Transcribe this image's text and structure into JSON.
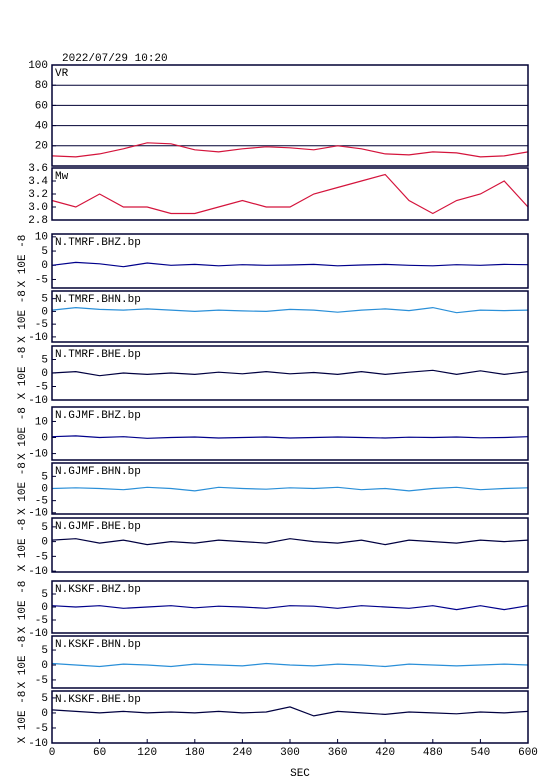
{
  "chart_data": [
    {
      "type": "line",
      "title": "2022/07/29 10:20",
      "ylim": [
        0,
        100
      ],
      "yticks": [
        20,
        40,
        60,
        80,
        100
      ],
      "grid": true,
      "xlim": [
        0,
        600
      ],
      "x": [
        0,
        30,
        60,
        90,
        120,
        150,
        180,
        210,
        240,
        270,
        300,
        330,
        360,
        390,
        420,
        450,
        480,
        510,
        540,
        570,
        600
      ],
      "series": [
        {
          "name": "VR",
          "color": "#d4143c",
          "values": [
            10,
            9,
            12,
            17,
            23,
            22,
            16,
            14,
            17,
            19,
            18,
            16,
            20,
            17,
            12,
            11,
            14,
            13,
            9,
            10,
            14
          ]
        }
      ]
    },
    {
      "type": "line",
      "ylim": [
        2.8,
        3.6
      ],
      "yticks": [
        2.8,
        {
          "value": 3,
          "label": "3.0"
        },
        3.2,
        3.4,
        3.6
      ],
      "grid": false,
      "xlim": [
        0,
        600
      ],
      "x": [
        0,
        30,
        60,
        90,
        120,
        150,
        180,
        210,
        240,
        270,
        300,
        330,
        360,
        390,
        420,
        450,
        480,
        510,
        540,
        570,
        600
      ],
      "series": [
        {
          "name": "Mw",
          "color": "#d4143c",
          "values": [
            3.1,
            3.0,
            3.2,
            3.0,
            3.0,
            2.9,
            2.9,
            3.0,
            3.1,
            3.0,
            3.0,
            3.2,
            3.3,
            3.4,
            3.5,
            3.1,
            2.9,
            3.1,
            3.2,
            3.4,
            3.0
          ]
        }
      ]
    },
    {
      "type": "line",
      "ylabel": "X 10E -8",
      "ylim": [
        -8,
        11
      ],
      "yticks": [
        -5,
        0,
        5,
        10
      ],
      "grid": false,
      "xlim": [
        0,
        600
      ],
      "x": [
        0,
        30,
        60,
        90,
        120,
        150,
        180,
        210,
        240,
        270,
        300,
        330,
        360,
        390,
        420,
        450,
        480,
        510,
        540,
        570,
        600
      ],
      "series": [
        {
          "name": "N.TMRF.BHZ.bp",
          "color": "#00008b",
          "values": [
            0,
            1,
            0.5,
            -0.5,
            0.8,
            0,
            0.3,
            -0.2,
            0.2,
            0,
            0.1,
            0.3,
            -0.2,
            0.1,
            0.3,
            0,
            -0.2,
            0.2,
            0,
            0.3,
            0.2
          ]
        }
      ]
    },
    {
      "type": "line",
      "ylabel": "X 10E -8",
      "ylim": [
        -12,
        8
      ],
      "yticks": [
        -10,
        -5,
        0,
        5
      ],
      "grid": false,
      "xlim": [
        0,
        600
      ],
      "x": [
        0,
        30,
        60,
        90,
        120,
        150,
        180,
        210,
        240,
        270,
        300,
        330,
        360,
        390,
        420,
        450,
        480,
        510,
        540,
        570,
        600
      ],
      "series": [
        {
          "name": "N.TMRF.BHN.bp",
          "color": "#2a8fd8",
          "values": [
            0.5,
            1.5,
            0.8,
            0.5,
            1,
            0.5,
            0,
            0.5,
            0.2,
            0,
            0.8,
            0.5,
            -0.3,
            0.5,
            1,
            0.3,
            1.5,
            -0.5,
            0.5,
            0.3,
            0.5
          ]
        }
      ]
    },
    {
      "type": "line",
      "ylabel": "X 10E -8",
      "ylim": [
        -10,
        10
      ],
      "yticks": [
        -10,
        -5,
        0,
        5
      ],
      "grid": false,
      "xlim": [
        0,
        600
      ],
      "x": [
        0,
        30,
        60,
        90,
        120,
        150,
        180,
        210,
        240,
        270,
        300,
        330,
        360,
        390,
        420,
        450,
        480,
        510,
        540,
        570,
        600
      ],
      "series": [
        {
          "name": "N.TMRF.BHE.bp",
          "color": "#000040",
          "values": [
            0,
            0.5,
            -1,
            0,
            -0.5,
            0,
            -0.5,
            0.3,
            -0.3,
            0.5,
            -0.3,
            0.2,
            -0.5,
            0.5,
            -0.5,
            0.3,
            1,
            -0.5,
            0.8,
            -0.5,
            0.5
          ]
        }
      ]
    },
    {
      "type": "line",
      "ylabel": "X 10E -8",
      "ylim": [
        -14,
        19
      ],
      "yticks": [
        -10,
        0,
        10
      ],
      "grid": false,
      "xlim": [
        0,
        600
      ],
      "x": [
        0,
        30,
        60,
        90,
        120,
        150,
        180,
        210,
        240,
        270,
        300,
        330,
        360,
        390,
        420,
        450,
        480,
        510,
        540,
        570,
        600
      ],
      "series": [
        {
          "name": "N.GJMF.BHZ.bp",
          "color": "#00008b",
          "values": [
            0.5,
            1,
            0,
            0.5,
            -0.5,
            0,
            0.3,
            -0.3,
            0,
            0.3,
            -0.3,
            0,
            0.3,
            0,
            -0.3,
            0.2,
            0,
            0.3,
            -0.2,
            0,
            0.5
          ]
        }
      ]
    },
    {
      "type": "line",
      "ylabel": "X 10E -8",
      "ylim": [
        -10.5,
        10.5
      ],
      "yticks": [
        -10,
        -5,
        0,
        5
      ],
      "grid": false,
      "xlim": [
        0,
        600
      ],
      "x": [
        0,
        30,
        60,
        90,
        120,
        150,
        180,
        210,
        240,
        270,
        300,
        330,
        360,
        390,
        420,
        450,
        480,
        510,
        540,
        570,
        600
      ],
      "series": [
        {
          "name": "N.GJMF.BHN.bp",
          "color": "#2a8fd8",
          "values": [
            0,
            0.3,
            0,
            -0.5,
            0.5,
            0,
            -1,
            0.5,
            0,
            -0.3,
            0.3,
            0,
            0.5,
            -0.5,
            0,
            -1,
            0,
            0.5,
            -0.5,
            0,
            0.3
          ]
        }
      ]
    },
    {
      "type": "line",
      "ylabel": "X 10E -8",
      "ylim": [
        -10.3,
        8
      ],
      "yticks": [
        -10,
        -5,
        0,
        5
      ],
      "grid": false,
      "xlim": [
        0,
        600
      ],
      "x": [
        0,
        30,
        60,
        90,
        120,
        150,
        180,
        210,
        240,
        270,
        300,
        330,
        360,
        390,
        420,
        450,
        480,
        510,
        540,
        570,
        600
      ],
      "series": [
        {
          "name": "N.GJMF.BHE.bp",
          "color": "#000040",
          "values": [
            0.5,
            1,
            -0.5,
            0.5,
            -1,
            0,
            -0.5,
            0.5,
            0,
            -0.5,
            1,
            0,
            -0.5,
            0.5,
            -1,
            0.5,
            0,
            -0.5,
            0.5,
            0,
            0.5
          ]
        }
      ]
    },
    {
      "type": "line",
      "ylabel": "X 10E -8",
      "ylim": [
        -10,
        10
      ],
      "yticks": [
        -10,
        -5,
        0,
        5
      ],
      "grid": false,
      "xlim": [
        0,
        600
      ],
      "x": [
        0,
        30,
        60,
        90,
        120,
        150,
        180,
        210,
        240,
        270,
        300,
        330,
        360,
        390,
        420,
        450,
        480,
        510,
        540,
        570,
        600
      ],
      "series": [
        {
          "name": "N.KSKF.BHZ.bp",
          "color": "#00008b",
          "values": [
            0.5,
            0,
            0.5,
            -0.5,
            0,
            0.5,
            -0.3,
            0.3,
            0,
            -0.5,
            0.5,
            0.3,
            -0.5,
            0.5,
            0,
            -0.5,
            0.5,
            -1,
            0.5,
            -1,
            0.5
          ]
        }
      ]
    },
    {
      "type": "line",
      "ylabel": "X 10E -8",
      "ylim": [
        -7.7,
        9.7
      ],
      "yticks": [
        -5,
        0,
        5
      ],
      "grid": false,
      "xlim": [
        0,
        600
      ],
      "x": [
        0,
        30,
        60,
        90,
        120,
        150,
        180,
        210,
        240,
        270,
        300,
        330,
        360,
        390,
        420,
        450,
        480,
        510,
        540,
        570,
        600
      ],
      "series": [
        {
          "name": "N.KSKF.BHN.bp",
          "color": "#2a8fd8",
          "values": [
            0.5,
            0,
            -0.5,
            0.3,
            0,
            -0.5,
            0.3,
            0,
            -0.3,
            0.5,
            0,
            -0.3,
            0.3,
            0,
            -0.5,
            0.3,
            0,
            -0.3,
            0,
            0.3,
            0
          ]
        }
      ]
    },
    {
      "type": "line",
      "ylabel": "X 10E -8",
      "ylim": [
        -10,
        7.3
      ],
      "yticks": [
        -10,
        -5,
        0,
        5
      ],
      "grid": false,
      "xlim": [
        0,
        600
      ],
      "xticks": [
        0,
        60,
        120,
        180,
        240,
        300,
        360,
        420,
        480,
        540,
        600
      ],
      "xlabel": "SEC",
      "x": [
        0,
        30,
        60,
        90,
        120,
        150,
        180,
        210,
        240,
        270,
        300,
        330,
        360,
        390,
        420,
        450,
        480,
        510,
        540,
        570,
        600
      ],
      "series": [
        {
          "name": "N.KSKF.BHE.bp",
          "color": "#000040",
          "values": [
            1,
            0.5,
            0,
            0.5,
            0,
            0.3,
            0,
            0.5,
            0,
            0.3,
            2,
            -1,
            0.5,
            0,
            -0.5,
            0.3,
            0,
            -0.3,
            0.3,
            0,
            0.5
          ]
        }
      ]
    }
  ]
}
